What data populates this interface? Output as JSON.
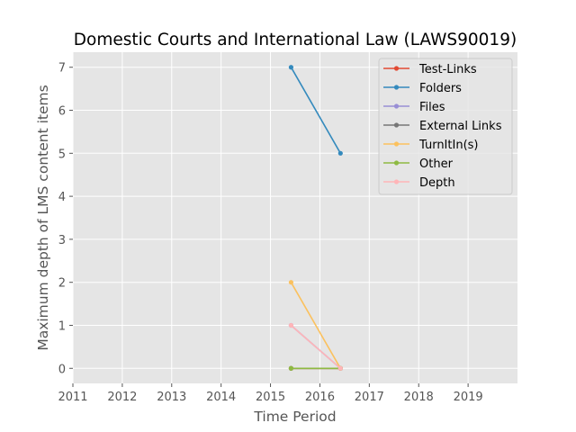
{
  "chart_data": {
    "type": "line",
    "title": "Domestic Courts and International Law (LAWS90019)",
    "xlabel": "Time Period",
    "ylabel": "Maximum depth of LMS content items",
    "xlim": [
      2011,
      2020
    ],
    "ylim": [
      -0.35,
      7.35
    ],
    "xticks": [
      2011,
      2012,
      2013,
      2014,
      2015,
      2016,
      2017,
      2018,
      2019
    ],
    "yticks": [
      0,
      1,
      2,
      3,
      4,
      5,
      6,
      7
    ],
    "grid": true,
    "legend_position": "top-right",
    "x": [
      "2015-06",
      "2016-06"
    ],
    "series": [
      {
        "name": "Test-Links",
        "color": "#e24a33",
        "values": [
          0,
          0
        ]
      },
      {
        "name": "Folders",
        "color": "#348abd",
        "values": [
          7,
          5
        ]
      },
      {
        "name": "Files",
        "color": "#988ed5",
        "values": [
          1,
          0
        ]
      },
      {
        "name": "External Links",
        "color": "#777777",
        "values": [
          0,
          0
        ]
      },
      {
        "name": "TurnItIn(s)",
        "color": "#fbc15e",
        "values": [
          2,
          0
        ]
      },
      {
        "name": "Other",
        "color": "#8eba42",
        "values": [
          0,
          0
        ]
      },
      {
        "name": "Depth",
        "color": "#ffb5b8",
        "values": [
          1,
          0
        ]
      }
    ]
  }
}
